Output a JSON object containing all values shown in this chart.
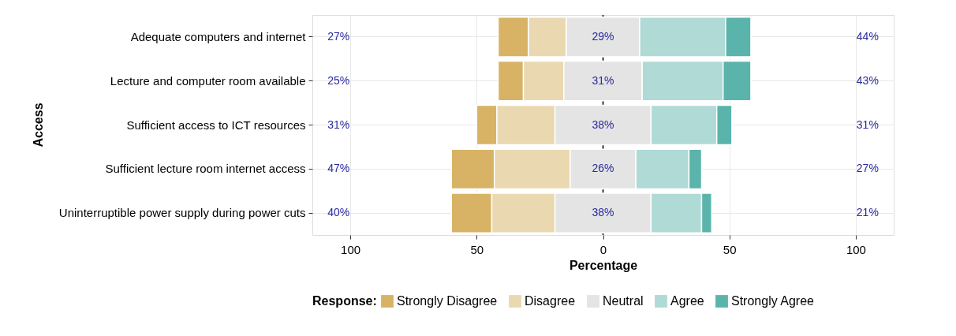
{
  "chart_data": {
    "type": "bar",
    "orientation": "horizontal",
    "ylabel": "Access",
    "xlabel": "Percentage",
    "legend_title": "Response:",
    "legend": "bottom",
    "categories": [
      "Adequate computers and internet",
      "Lecture and computer room available",
      "Sufficient access to ICT resources",
      "Sufficient lecture room internet access",
      "Uninterruptible power supply during power cuts"
    ],
    "series": [
      {
        "name": "Strongly Disagree",
        "color": "#d8b365",
        "values": [
          12,
          10,
          8,
          17,
          16
        ],
        "base": [
          -41.5,
          -41.5,
          -50,
          -60,
          -60
        ]
      },
      {
        "name": "Disagree",
        "color": "#ead8b0",
        "values": [
          15,
          16,
          23,
          30,
          25
        ],
        "base": [
          -29.5,
          -31.5,
          -42,
          -43,
          -44
        ]
      },
      {
        "name": "Neutral",
        "color": "#e4e4e4",
        "values": [
          29,
          31,
          38,
          26,
          38
        ],
        "base": [
          -14.5,
          -15.5,
          -19,
          -13,
          -19
        ],
        "value_labels": [
          "29%",
          "31%",
          "38%",
          "26%",
          "38%"
        ]
      },
      {
        "name": "Agree",
        "color": "#afdad6",
        "values": [
          34,
          32,
          26,
          21,
          20
        ],
        "base": [
          14.5,
          15.5,
          19,
          13,
          19
        ]
      },
      {
        "name": "Strongly Agree",
        "color": "#5ab4ac",
        "values": [
          10,
          11,
          6,
          5,
          4
        ],
        "base": [
          48.5,
          47.5,
          45,
          34,
          39
        ]
      }
    ],
    "xlim": [
      -115,
      115
    ],
    "xticks": [
      {
        "value": -100,
        "label": "100"
      },
      {
        "value": -50,
        "label": "50"
      },
      0,
      50,
      100
    ],
    "grid": true,
    "ref_lines": [
      {
        "axis": "x",
        "value": 0,
        "color": "#000000"
      }
    ],
    "annotations": [
      "27%",
      "44%",
      "25%",
      "43%",
      "31%",
      "31%",
      "47%",
      "27%",
      "40%",
      "21%"
    ]
  }
}
